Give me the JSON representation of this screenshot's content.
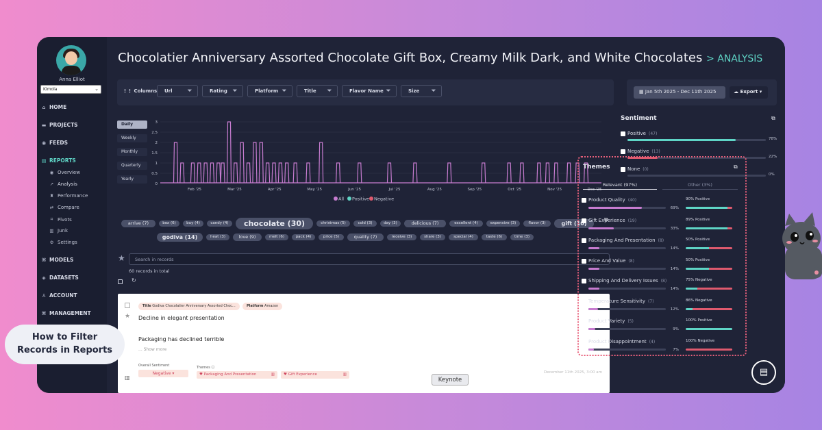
{
  "sidebar": {
    "user_name": "Anna Elliot",
    "org": "Kimola",
    "nav": [
      {
        "label": "HOME",
        "icon": "home-icon"
      },
      {
        "label": "PROJECTS",
        "icon": "folder-icon"
      },
      {
        "label": "FEEDS",
        "icon": "feeds-icon"
      },
      {
        "label": "REPORTS",
        "icon": "reports-icon"
      },
      {
        "label": "MODELS",
        "icon": "models-icon"
      },
      {
        "label": "DATASETS",
        "icon": "datasets-icon"
      },
      {
        "label": "ACCOUNT",
        "icon": "account-icon"
      },
      {
        "label": "MANAGEMENT",
        "icon": "management-icon"
      }
    ],
    "sub": [
      "Overview",
      "Analysis",
      "Performance",
      "Compare",
      "Pivots",
      "Junk",
      "Settings"
    ]
  },
  "header": {
    "title": "Chocolatier Anniversary Assorted Chocolate Gift Box, Creamy Milk Dark, and White Chocolates",
    "crumb": "> ANALYSIS"
  },
  "filters": {
    "columns_label": "Columns",
    "items": [
      "Url",
      "Rating",
      "Platform",
      "Title",
      "Flavor Name",
      "Size"
    ]
  },
  "date": {
    "range": "Jan 5th 2025 - Dec 11th 2025",
    "export": "Export"
  },
  "periods": [
    "Daily",
    "Weekly",
    "Monthly",
    "Quarterly",
    "Yearly"
  ],
  "chart_data": {
    "type": "line",
    "x_labels": [
      "Feb '25",
      "Mar '25",
      "Apr '25",
      "May '25",
      "Jun '25",
      "Jul '25",
      "Aug '25",
      "Sep '25",
      "Oct '25",
      "Nov '25",
      "Dec '25"
    ],
    "y_ticks": [
      "0",
      "0.5",
      "1",
      "1.5",
      "2",
      "2.5",
      "3"
    ],
    "ylim": [
      0,
      3
    ],
    "legend": [
      "All",
      "Positive",
      "Negative"
    ],
    "colors": {
      "all": "#c77cd0",
      "positive": "#5fd5c6",
      "negative": "#e05a6e"
    },
    "spikes": [
      {
        "t": 0.02,
        "all": 2
      },
      {
        "t": 0.035,
        "all": 1
      },
      {
        "t": 0.06,
        "all": 1
      },
      {
        "t": 0.075,
        "all": 1
      },
      {
        "t": 0.09,
        "all": 1
      },
      {
        "t": 0.105,
        "all": 1
      },
      {
        "t": 0.12,
        "all": 1
      },
      {
        "t": 0.13,
        "all": 1
      },
      {
        "t": 0.145,
        "all": 3
      },
      {
        "t": 0.16,
        "all": 1
      },
      {
        "t": 0.175,
        "all": 2
      },
      {
        "t": 0.19,
        "all": 1
      },
      {
        "t": 0.205,
        "all": 2
      },
      {
        "t": 0.22,
        "all": 2
      },
      {
        "t": 0.235,
        "all": 1
      },
      {
        "t": 0.25,
        "all": 1
      },
      {
        "t": 0.265,
        "all": 1
      },
      {
        "t": 0.28,
        "all": 1
      },
      {
        "t": 0.3,
        "all": 1
      },
      {
        "t": 0.33,
        "all": 1
      },
      {
        "t": 0.36,
        "all": 2
      },
      {
        "t": 0.4,
        "all": 1
      },
      {
        "t": 0.45,
        "all": 1
      },
      {
        "t": 0.52,
        "all": 1
      },
      {
        "t": 0.58,
        "all": 1
      },
      {
        "t": 0.66,
        "all": 1
      },
      {
        "t": 0.74,
        "all": 1
      },
      {
        "t": 0.8,
        "all": 1
      },
      {
        "t": 0.83,
        "all": 1
      },
      {
        "t": 0.87,
        "all": 1
      },
      {
        "t": 0.89,
        "all": 1
      },
      {
        "t": 0.91,
        "all": 1
      },
      {
        "t": 0.94,
        "all": 1
      },
      {
        "t": 0.96,
        "all": 1
      },
      {
        "t": 0.98,
        "all": 1
      }
    ]
  },
  "words": [
    {
      "w": "arrive (7)",
      "s": 1
    },
    {
      "w": "box (6)",
      "s": 0
    },
    {
      "w": "buy (4)",
      "s": 0
    },
    {
      "w": "candy (4)",
      "s": 0
    },
    {
      "w": "chocolate (30)",
      "s": 3
    },
    {
      "w": "christmas (5)",
      "s": 0
    },
    {
      "w": "cold (3)",
      "s": 0
    },
    {
      "w": "day (3)",
      "s": 0
    },
    {
      "w": "delicious (7)",
      "s": 1
    },
    {
      "w": "excellent (4)",
      "s": 0
    },
    {
      "w": "expensive (3)",
      "s": 0
    },
    {
      "w": "flavor (3)",
      "s": 0
    },
    {
      "w": "gift (10)",
      "s": 2
    },
    {
      "w": "godiva (14)",
      "s": 2
    },
    {
      "w": "heat (3)",
      "s": 0
    },
    {
      "w": "love (9)",
      "s": 1
    },
    {
      "w": "melt (6)",
      "s": 0
    },
    {
      "w": "pack (4)",
      "s": 0
    },
    {
      "w": "price (5)",
      "s": 0
    },
    {
      "w": "quality (7)",
      "s": 1
    },
    {
      "w": "receive (3)",
      "s": 0
    },
    {
      "w": "share (3)",
      "s": 0
    },
    {
      "w": "special (4)",
      "s": 0
    },
    {
      "w": "taste (6)",
      "s": 0
    },
    {
      "w": "time (3)",
      "s": 0
    }
  ],
  "records": {
    "search_placeholder": "Search in records",
    "count": "60 records in total",
    "item": {
      "tag_title_key": "Title",
      "tag_title_val": "Godiva Chocolatier Anniversary Assorted Choc...",
      "tag_platform_key": "Platform",
      "tag_platform_val": "Amazon",
      "heading": "Decline in elegant presentation",
      "body": "Packaging has declined terrible",
      "show_more": "... Show more",
      "sentiment_label": "Overall Sentiment",
      "sentiment_value": "Negative",
      "themes_label": "Themes",
      "theme1": "Packaging And Presentation",
      "theme2": "Gift Experience",
      "date": "December 11th 2025, 3:00 am"
    }
  },
  "sentiment": {
    "title": "Sentiment",
    "rows": [
      {
        "label": "Positive",
        "count": "(47)",
        "pct": "78%",
        "value": 0.78,
        "color": "#5fd5c6"
      },
      {
        "label": "Negative",
        "count": "(13)",
        "pct": "22%",
        "value": 0.22,
        "color": "#e05a6e"
      },
      {
        "label": "None",
        "count": "(0)",
        "pct": "0%",
        "value": 0,
        "color": "#8e94aa"
      }
    ]
  },
  "themes": {
    "title": "Themes",
    "tab_relevant": "Relevant (97%)",
    "tab_other": "Other (3%)",
    "rows": [
      {
        "label": "Product Quality",
        "count": "(40)",
        "pct": "69%",
        "value": 0.69,
        "sent": "90% Positive",
        "pos": 0.9,
        "neg": 0.1
      },
      {
        "label": "Gift Experience",
        "count": "(19)",
        "pct": "33%",
        "value": 0.33,
        "sent": "89% Positive",
        "pos": 0.89,
        "neg": 0.11
      },
      {
        "label": "Packaging And Presentation",
        "count": "(8)",
        "pct": "14%",
        "value": 0.14,
        "sent": "50% Positive",
        "pos": 0.5,
        "neg": 0.5
      },
      {
        "label": "Price And Value",
        "count": "(8)",
        "pct": "14%",
        "value": 0.14,
        "sent": "50% Positive",
        "pos": 0.5,
        "neg": 0.5
      },
      {
        "label": "Shipping And Delivery Issues",
        "count": "(8)",
        "pct": "14%",
        "value": 0.14,
        "sent": "75% Negative",
        "pos": 0.25,
        "neg": 0.75
      },
      {
        "label": "Temperature Sensitivity",
        "count": "(7)",
        "pct": "12%",
        "value": 0.12,
        "sent": "86% Negative",
        "pos": 0.14,
        "neg": 0.86
      },
      {
        "label": "Product Variety",
        "count": "(5)",
        "pct": "9%",
        "value": 0.09,
        "sent": "100% Positive",
        "pos": 1.0,
        "neg": 0
      },
      {
        "label": "Product Disappointment",
        "count": "(4)",
        "pct": "7%",
        "value": 0.07,
        "sent": "100% Negative",
        "pos": 0,
        "neg": 1.0
      }
    ]
  },
  "overlay": {
    "pill_line1": "How to Filter",
    "pill_line2": "Records in Reports",
    "keynote": "Keynote"
  }
}
